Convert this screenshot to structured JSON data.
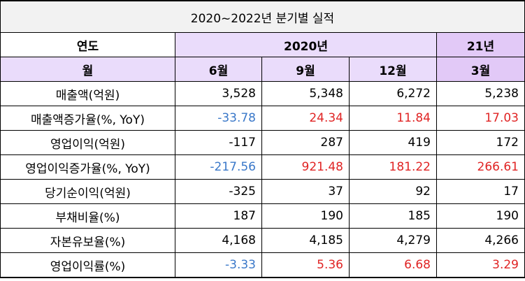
{
  "title": "2020~2022년 분기별 실적",
  "header": {
    "year_label": "연도",
    "year_2020": "2020년",
    "year_21": "21년",
    "month_label": "월",
    "months": [
      "6월",
      "9월",
      "12월",
      "3월"
    ]
  },
  "rows": [
    {
      "label": "매출액(억원)",
      "values": [
        "3,528",
        "5,348",
        "6,272",
        "5,238"
      ],
      "colors": [
        "",
        "",
        "",
        ""
      ]
    },
    {
      "label": "매출액증가율(%, YoY)",
      "values": [
        "-33.78",
        "24.34",
        "11.84",
        "17.03"
      ],
      "colors": [
        "neg",
        "pos",
        "pos",
        "pos"
      ]
    },
    {
      "label": "영업이익(억원)",
      "values": [
        "-117",
        "287",
        "419",
        "172"
      ],
      "colors": [
        "",
        "",
        "",
        ""
      ]
    },
    {
      "label": "영업이익증가율(%, YoY)",
      "values": [
        "-217.56",
        "921.48",
        "181.22",
        "266.61"
      ],
      "colors": [
        "neg",
        "pos",
        "pos",
        "pos"
      ]
    },
    {
      "label": "당기순이익(억원)",
      "values": [
        "-325",
        "37",
        "92",
        "17"
      ],
      "colors": [
        "",
        "",
        "",
        ""
      ]
    },
    {
      "label": "부채비율(%)",
      "values": [
        "187",
        "190",
        "185",
        "190"
      ],
      "colors": [
        "",
        "",
        "",
        ""
      ]
    },
    {
      "label": "자본유보율(%)",
      "values": [
        "4,168",
        "4,185",
        "4,279",
        "4,266"
      ],
      "colors": [
        "",
        "",
        "",
        ""
      ]
    },
    {
      "label": "영업이익률(%)",
      "values": [
        "-3.33",
        "5.36",
        "6.68",
        "3.29"
      ],
      "colors": [
        "neg",
        "pos",
        "pos",
        "pos"
      ]
    }
  ],
  "colors": {
    "negative": "#3a78c9",
    "positive": "#e02424",
    "header_purple": "#eadcfb",
    "header_purple_dark": "#e2c9f7",
    "title_bg": "#f2f2f2"
  }
}
